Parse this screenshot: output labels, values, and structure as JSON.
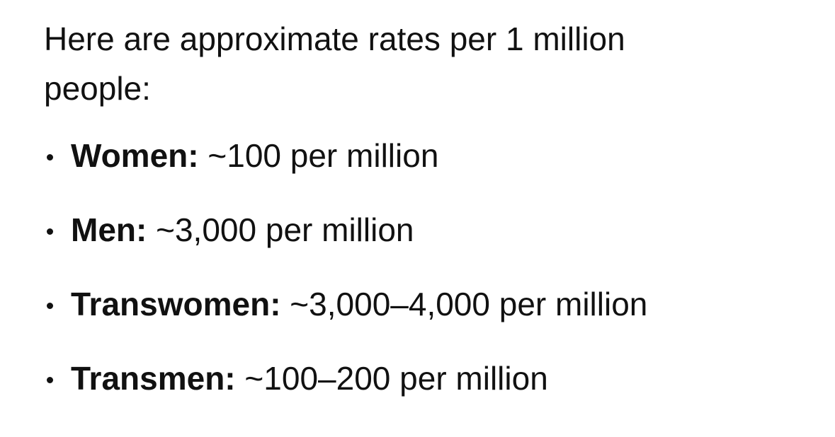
{
  "intro": "Here are approximate rates per 1 million people:",
  "items": [
    {
      "label": "Women:",
      "text": "~100 per million"
    },
    {
      "label": "Men:",
      "text": "~3,000 per million"
    },
    {
      "label": "Transwomen:",
      "text": "~3,000–4,000 per million"
    },
    {
      "label": "Transmen:",
      "text": "~100–200 per million"
    }
  ]
}
